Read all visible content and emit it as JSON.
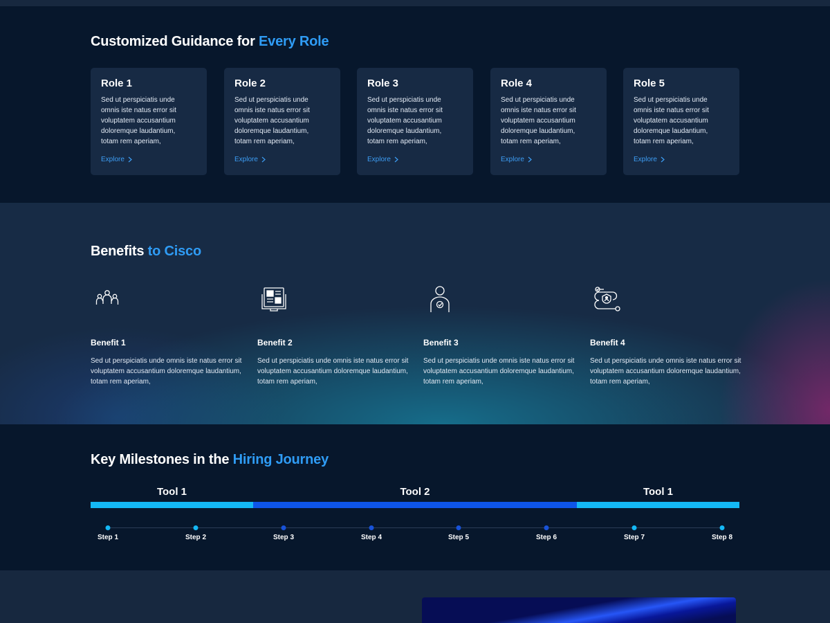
{
  "roles_section": {
    "title_main": "Customized Guidance for ",
    "title_accent": "Every Role",
    "cards": [
      {
        "title": "Role 1",
        "description": "Sed ut perspiciatis unde omnis iste natus error sit voluptatem accusantium doloremque laudantium, totam rem aperiam,",
        "link": "Explore"
      },
      {
        "title": "Role 2",
        "description": "Sed ut perspiciatis unde omnis iste natus error sit voluptatem accusantium doloremque laudantium, totam rem aperiam,",
        "link": "Explore"
      },
      {
        "title": "Role 3",
        "description": "Sed ut perspiciatis unde omnis iste natus error sit voluptatem accusantium doloremque laudantium, totam rem aperiam,",
        "link": "Explore"
      },
      {
        "title": "Role 4",
        "description": "Sed ut perspiciatis unde omnis iste natus error sit voluptatem accusantium doloremque laudantium, totam rem aperiam,",
        "link": "Explore"
      },
      {
        "title": "Role 5",
        "description": "Sed ut perspiciatis unde omnis iste natus error sit voluptatem accusantium doloremque laudantium, totam rem aperiam,",
        "link": "Explore"
      }
    ]
  },
  "benefits_section": {
    "title_main": "Benefits ",
    "title_accent": "to Cisco",
    "items": [
      {
        "icon": "team-icon",
        "title": "Benefit 1",
        "description": "Sed ut perspiciatis unde omnis iste natus error sit voluptatem accusantium doloremque laudantium, totam rem aperiam,"
      },
      {
        "icon": "dashboard-screen-icon",
        "title": "Benefit 2",
        "description": "Sed ut perspiciatis unde omnis iste natus error sit voluptatem accusantium doloremque laudantium, totam rem aperiam,"
      },
      {
        "icon": "verified-user-icon",
        "title": "Benefit 3",
        "description": "Sed ut perspiciatis unde omnis iste natus error sit voluptatem accusantium doloremque laudantium, totam rem aperiam,"
      },
      {
        "icon": "workflow-shield-icon",
        "title": "Benefit 4",
        "description": "Sed ut perspiciatis unde omnis iste natus error sit voluptatem accusantium doloremque laudantium, totam rem aperiam,"
      }
    ]
  },
  "milestones_section": {
    "title_main": "Key Milestones in the ",
    "title_accent": "Hiring Journey",
    "tools": [
      "Tool 1",
      "Tool 2",
      "Tool 1"
    ],
    "steps": [
      "Step 1",
      "Step 2",
      "Step 3",
      "Step 4",
      "Step 5",
      "Step 6",
      "Step 7",
      "Step 8"
    ]
  },
  "colors": {
    "accent": "#2f9cf5",
    "tool_light": "#14b8f5",
    "tool_dark": "#0e55e8",
    "step_light": "#14b8f5",
    "step_dark": "#1852d8"
  }
}
